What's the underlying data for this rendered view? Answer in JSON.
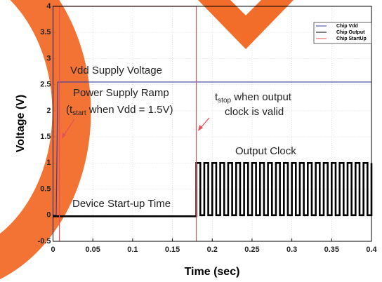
{
  "chart_data": {
    "type": "line",
    "xlabel": "Time (sec)",
    "ylabel": "Voltage (V)",
    "xlim": [
      0,
      0.4
    ],
    "xticks": [
      0,
      0.05,
      0.1,
      0.15,
      0.2,
      0.25,
      0.3,
      0.35,
      0.4
    ],
    "ylim": [
      -0.5,
      4
    ],
    "yticks": [
      -0.5,
      0,
      0.5,
      1,
      1.5,
      2,
      2.5,
      3,
      3.5,
      4
    ],
    "grid": true,
    "legend": "upper right",
    "series": [
      {
        "name": "Chip Vdd",
        "color": "#3a3aa8",
        "x": [
          0,
          0.004,
          0.006,
          0.4
        ],
        "values": [
          0,
          0,
          2.55,
          2.55
        ]
      },
      {
        "name": "Chip Output",
        "color": "#000000",
        "step": true,
        "x": [
          0,
          0.18,
          0.185,
          0.19,
          0.195,
          0.2,
          0.205,
          0.21,
          0.215,
          0.22,
          0.225,
          0.23,
          0.235,
          0.24,
          0.245,
          0.25,
          0.255,
          0.26,
          0.265,
          0.27,
          0.275,
          0.28,
          0.285,
          0.29,
          0.295,
          0.3,
          0.305,
          0.31,
          0.315,
          0.32,
          0.325,
          0.33,
          0.335,
          0.34,
          0.345,
          0.35,
          0.355,
          0.36,
          0.365,
          0.37,
          0.375,
          0.38,
          0.385,
          0.39,
          0.395,
          0.4
        ],
        "values": [
          -0.02,
          1,
          0,
          1,
          0,
          1,
          0,
          1,
          0,
          1,
          0,
          1,
          0,
          1,
          0,
          1,
          0,
          1,
          0,
          1,
          0,
          1,
          0,
          1,
          0,
          1,
          0,
          1,
          0,
          1,
          0,
          1,
          0,
          1,
          0,
          1,
          0,
          1,
          0,
          1,
          0,
          1,
          0,
          1,
          0,
          1
        ]
      },
      {
        "name": "Chip StartUp",
        "color": "#e8505a",
        "x": [
          0.008,
          0.008,
          0.18,
          0.18
        ],
        "values": [
          -0.5,
          4,
          4,
          -0.5
        ]
      }
    ],
    "annotations": [
      {
        "text": "Vdd Supply Voltage"
      },
      {
        "text": "Power Supply Ramp"
      },
      {
        "text": "(t",
        "sub": "start",
        "rest": " when Vdd = 1.5V)"
      },
      {
        "text": "t",
        "sub": "stop",
        "rest": " when output"
      },
      {
        "text": "clock is valid"
      },
      {
        "text": "Output Clock"
      },
      {
        "text": "Device Start-up Time"
      }
    ]
  }
}
